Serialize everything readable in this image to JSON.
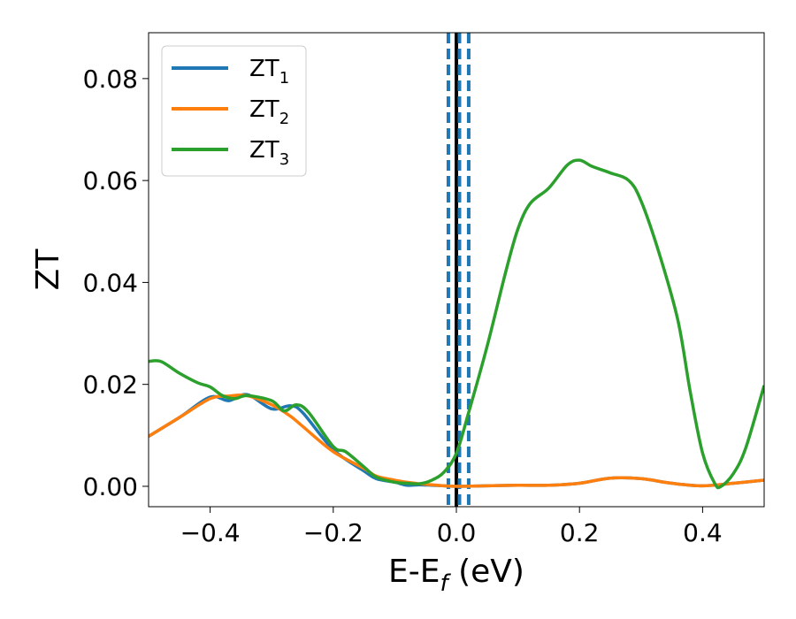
{
  "chart_data": {
    "type": "line",
    "xlabel": "E-E",
    "xlabel_sub": "f",
    "xlabel_unit": " (eV)",
    "ylabel": "ZT",
    "xlim": [
      -0.5,
      0.5
    ],
    "ylim": [
      -0.004,
      0.089
    ],
    "grid": false,
    "legend_position": "top-left",
    "x_ticks": [
      -0.4,
      -0.2,
      0.0,
      0.2,
      0.4
    ],
    "x_tick_labels": [
      "−0.4",
      "−0.2",
      "0.0",
      "0.2",
      "0.4"
    ],
    "y_ticks": [
      0.0,
      0.02,
      0.04,
      0.06,
      0.08
    ],
    "y_tick_labels": [
      "0.00",
      "0.02",
      "0.04",
      "0.06",
      "0.08"
    ],
    "vlines": [
      {
        "x": 0.0,
        "style": "solid",
        "color": "#000000"
      },
      {
        "x": -0.013,
        "style": "dashed",
        "color": "#1f77b4"
      },
      {
        "x": 0.005,
        "style": "dashed",
        "color": "#1f77b4"
      },
      {
        "x": 0.02,
        "style": "dashed",
        "color": "#1f77b4"
      }
    ],
    "series": [
      {
        "name": "ZT",
        "sub": "1",
        "color": "#1f77b4",
        "x": [
          -0.5,
          -0.45,
          -0.4,
          -0.37,
          -0.34,
          -0.3,
          -0.27,
          -0.25,
          -0.2,
          -0.15,
          -0.13,
          -0.1,
          -0.08,
          -0.06,
          -0.04,
          -0.02,
          0.0,
          0.05,
          0.1,
          0.15,
          0.2,
          0.25,
          0.3,
          0.35,
          0.4,
          0.45,
          0.5
        ],
        "values": [
          0.0098,
          0.0135,
          0.0175,
          0.0168,
          0.018,
          0.0152,
          0.0158,
          0.0145,
          0.0072,
          0.003,
          0.0015,
          0.0008,
          0.0002,
          0.0003,
          0.0002,
          0.0001,
          0.0,
          0.0001,
          0.0002,
          0.0002,
          0.0006,
          0.0016,
          0.0015,
          0.0006,
          0.0001,
          0.0006,
          0.0012
        ]
      },
      {
        "name": "ZT",
        "sub": "2",
        "color": "#ff7f0e",
        "x": [
          -0.5,
          -0.45,
          -0.4,
          -0.37,
          -0.34,
          -0.3,
          -0.27,
          -0.25,
          -0.2,
          -0.15,
          -0.13,
          -0.1,
          -0.08,
          -0.06,
          -0.04,
          -0.02,
          0.0,
          0.05,
          0.1,
          0.15,
          0.2,
          0.25,
          0.3,
          0.35,
          0.4,
          0.45,
          0.5
        ],
        "values": [
          0.0098,
          0.0135,
          0.0172,
          0.0177,
          0.0178,
          0.016,
          0.0138,
          0.0118,
          0.0068,
          0.0035,
          0.002,
          0.0012,
          0.0008,
          0.0005,
          0.0003,
          0.0001,
          0.0,
          0.0001,
          0.0002,
          0.0002,
          0.0006,
          0.0016,
          0.0015,
          0.0006,
          0.0001,
          0.0006,
          0.0012
        ]
      },
      {
        "name": "ZT",
        "sub": "3",
        "color": "#2ca02c",
        "x": [
          -0.5,
          -0.48,
          -0.45,
          -0.42,
          -0.4,
          -0.38,
          -0.36,
          -0.34,
          -0.3,
          -0.28,
          -0.26,
          -0.24,
          -0.2,
          -0.18,
          -0.15,
          -0.13,
          -0.1,
          -0.08,
          -0.06,
          -0.04,
          -0.02,
          0.0,
          0.02,
          0.05,
          0.08,
          0.1,
          0.12,
          0.15,
          0.18,
          0.2,
          0.22,
          0.25,
          0.28,
          0.3,
          0.33,
          0.36,
          0.38,
          0.4,
          0.42,
          0.43,
          0.45,
          0.47,
          0.5
        ],
        "values": [
          0.0245,
          0.0245,
          0.0222,
          0.0203,
          0.0195,
          0.0178,
          0.0172,
          0.0178,
          0.0168,
          0.0148,
          0.016,
          0.0145,
          0.0078,
          0.0068,
          0.0038,
          0.0018,
          0.0008,
          0.0006,
          0.0005,
          0.0012,
          0.0028,
          0.0065,
          0.0145,
          0.0275,
          0.042,
          0.0505,
          0.0555,
          0.0585,
          0.063,
          0.064,
          0.0628,
          0.0615,
          0.06,
          0.056,
          0.0455,
          0.0325,
          0.0185,
          0.0065,
          0.0005,
          0.0,
          0.0025,
          0.0075,
          0.0198
        ]
      }
    ]
  }
}
